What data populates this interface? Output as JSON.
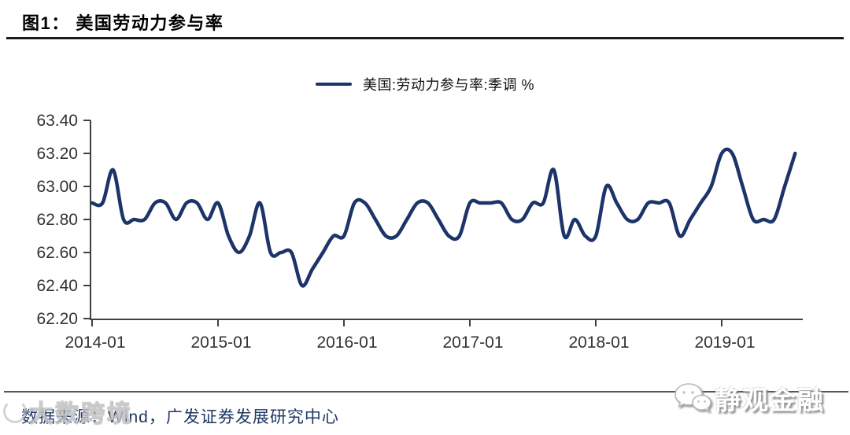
{
  "header": {
    "title": "图1： 美国劳动力参与率"
  },
  "legend": {
    "label": "美国:劳动力参与率:季调 %"
  },
  "chart_data": {
    "type": "line",
    "title": "美国劳动力参与率",
    "series": [
      {
        "name": "美国:劳动力参与率:季调 %"
      }
    ],
    "xlabel": "",
    "ylabel": "",
    "grid": false,
    "legend_position": "top-center",
    "line_color": "#1c3468",
    "axis_color": "#404040",
    "tick_label_color": "#333333",
    "ylim": [
      62.2,
      63.4
    ],
    "y_tick_labels": [
      "63.40",
      "63.20",
      "63.00",
      "62.80",
      "62.60",
      "62.40",
      "62.20"
    ],
    "x_tick_labels": [
      "2014-01",
      "2015-01",
      "2016-01",
      "2017-01",
      "2018-01",
      "2019-01"
    ],
    "x": [
      "2014-01",
      "2014-02",
      "2014-03",
      "2014-04",
      "2014-05",
      "2014-06",
      "2014-07",
      "2014-08",
      "2014-09",
      "2014-10",
      "2014-11",
      "2014-12",
      "2015-01",
      "2015-02",
      "2015-03",
      "2015-04",
      "2015-05",
      "2015-06",
      "2015-07",
      "2015-08",
      "2015-09",
      "2015-10",
      "2015-11",
      "2015-12",
      "2016-01",
      "2016-02",
      "2016-03",
      "2016-04",
      "2016-05",
      "2016-06",
      "2016-07",
      "2016-08",
      "2016-09",
      "2016-10",
      "2016-11",
      "2016-12",
      "2017-01",
      "2017-02",
      "2017-03",
      "2017-04",
      "2017-05",
      "2017-06",
      "2017-07",
      "2017-08",
      "2017-09",
      "2017-10",
      "2017-11",
      "2017-12",
      "2018-01",
      "2018-02",
      "2018-03",
      "2018-04",
      "2018-05",
      "2018-06",
      "2018-07",
      "2018-08",
      "2018-09",
      "2018-10",
      "2018-11",
      "2018-12",
      "2019-01",
      "2019-02",
      "2019-03",
      "2019-04",
      "2019-05",
      "2019-06",
      "2019-07",
      "2019-08"
    ],
    "values": [
      62.9,
      62.9,
      63.1,
      62.8,
      62.8,
      62.8,
      62.9,
      62.9,
      62.8,
      62.9,
      62.9,
      62.8,
      62.9,
      62.7,
      62.6,
      62.7,
      62.9,
      62.6,
      62.6,
      62.6,
      62.4,
      62.5,
      62.6,
      62.7,
      62.7,
      62.9,
      62.9,
      62.8,
      62.7,
      62.7,
      62.8,
      62.9,
      62.9,
      62.8,
      62.7,
      62.7,
      62.9,
      62.9,
      62.9,
      62.9,
      62.8,
      62.8,
      62.9,
      62.9,
      63.1,
      62.7,
      62.8,
      62.7,
      62.7,
      63.0,
      62.9,
      62.8,
      62.8,
      62.9,
      62.9,
      62.9,
      62.7,
      62.8,
      62.9,
      63.0,
      63.2,
      63.2,
      63.0,
      62.8,
      62.8,
      62.8,
      63.0,
      63.2
    ]
  },
  "footer": {
    "source": "数据来源：Wind，广发证券发展研究中心"
  },
  "watermarks": {
    "bottom_left": "大数跨境",
    "bottom_right": "静观金融"
  }
}
